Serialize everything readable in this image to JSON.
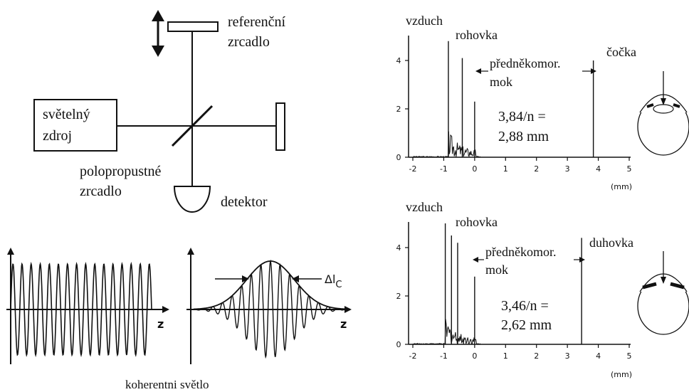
{
  "interferometer": {
    "reference_mirror": [
      "referenční",
      "zrcadlo"
    ],
    "light_source": [
      "světelný",
      "zdroj"
    ],
    "beam_splitter": [
      "polopropustné",
      "zrcadlo"
    ],
    "detector": "detektor"
  },
  "waves": {
    "axis_z_left": "z",
    "axis_z_right": "z",
    "coherence_label": "Δl",
    "coherence_sub": "C",
    "caption": "koherentni světlo"
  },
  "chart_data": [
    {
      "type": "line",
      "xlim": [
        -2,
        5
      ],
      "ylim": [
        0,
        5
      ],
      "xticks": [
        "-2",
        "-1",
        "0",
        "1",
        "2",
        "3",
        "4",
        "5"
      ],
      "yticks": [
        "0",
        "2",
        "4"
      ],
      "xunit": "(mm)",
      "peaks": [
        {
          "x": -0.85,
          "y": 4.8
        },
        {
          "x": -0.4,
          "y": 4.1
        },
        {
          "x": 0.0,
          "y": 2.3
        },
        {
          "x": 3.84,
          "y": 4.0
        }
      ],
      "annotations": [
        "vzduch",
        "rohovka",
        "předněkomor.",
        "mok",
        "čočka",
        "3,84/n =",
        "2,88 mm"
      ]
    },
    {
      "type": "line",
      "xlim": [
        -2,
        5
      ],
      "ylim": [
        0,
        5
      ],
      "xticks": [
        "-2",
        "-1",
        "0",
        "1",
        "2",
        "3",
        "4",
        "5"
      ],
      "yticks": [
        "0",
        "2",
        "4"
      ],
      "xunit": "(mm)",
      "peaks": [
        {
          "x": -0.95,
          "y": 5.0
        },
        {
          "x": -0.75,
          "y": 4.5
        },
        {
          "x": -0.55,
          "y": 4.2
        },
        {
          "x": 0.0,
          "y": 2.8
        },
        {
          "x": 3.46,
          "y": 4.4
        }
      ],
      "annotations": [
        "vzduch",
        "rohovka",
        "předněkomor.",
        "mok",
        "duhovka",
        "3,46/n =",
        "2,62 mm"
      ]
    }
  ]
}
